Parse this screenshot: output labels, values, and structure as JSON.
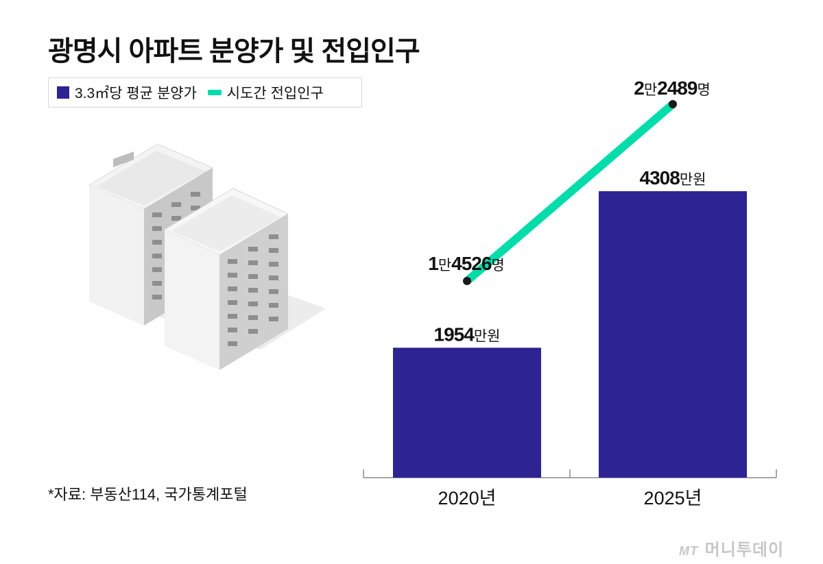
{
  "title": "광명시 아파트 분양가 및 전입인구",
  "legend": {
    "bar_label": "3.3㎡당 평균 분양가",
    "line_label": "시도간 전입인구"
  },
  "source": "*자료: 부동산114, 국가통계포털",
  "logo": {
    "mark": "MT",
    "text": "머니투데이"
  },
  "colors": {
    "bar": "#2e2392",
    "line": "#00dcaa",
    "text": "#111111"
  },
  "chart_data": {
    "type": "bar",
    "categories": [
      "2020년",
      "2025년"
    ],
    "series": [
      {
        "name": "3.3㎡당 평균 분양가",
        "kind": "bar",
        "values": [
          1954,
          4308
        ],
        "labels": [
          {
            "num": "1954",
            "unit": "만원"
          },
          {
            "num": "4308",
            "unit": "만원"
          }
        ]
      },
      {
        "name": "시도간 전입인구",
        "kind": "line",
        "values": [
          14526,
          22489
        ],
        "labels": [
          {
            "a": "1",
            "b": "만",
            "c": "4526",
            "d": "명"
          },
          {
            "a": "2",
            "b": "만",
            "c": "2489",
            "d": "명"
          }
        ]
      }
    ]
  }
}
